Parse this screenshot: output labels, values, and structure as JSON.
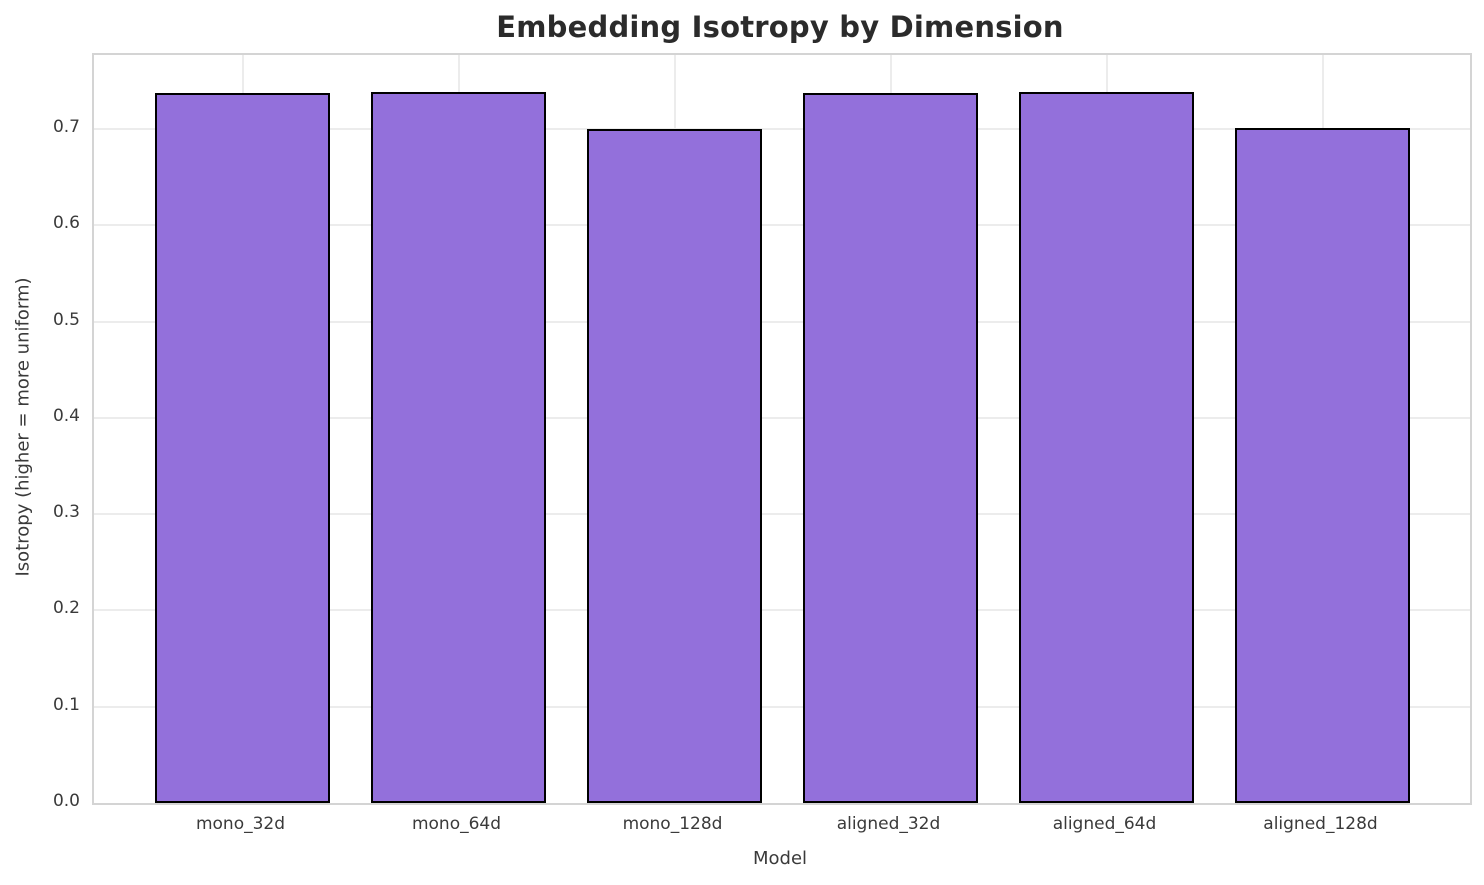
{
  "chart_data": {
    "type": "bar",
    "title": "Embedding Isotropy by Dimension",
    "xlabel": "Model",
    "ylabel": "Isotropy (higher = more uniform)",
    "categories": [
      "mono_32d",
      "mono_64d",
      "mono_128d",
      "aligned_32d",
      "aligned_64d",
      "aligned_128d"
    ],
    "values": [
      0.738,
      0.739,
      0.7,
      0.738,
      0.739,
      0.701
    ],
    "ylim": [
      0,
      0.777
    ],
    "yticks": [
      0.0,
      0.1,
      0.2,
      0.3,
      0.4,
      0.5,
      0.6,
      0.7
    ],
    "ytick_format_decimals": 1,
    "grid": true,
    "legend": "none",
    "colors": {
      "bar_fill": "#9370db",
      "bar_edge": "#000000",
      "grid": "#ececec",
      "spine": "#d4d4d4",
      "title_text": "#2b2b2b",
      "tick_text": "#3a3a3a",
      "background": "#ffffff"
    }
  }
}
